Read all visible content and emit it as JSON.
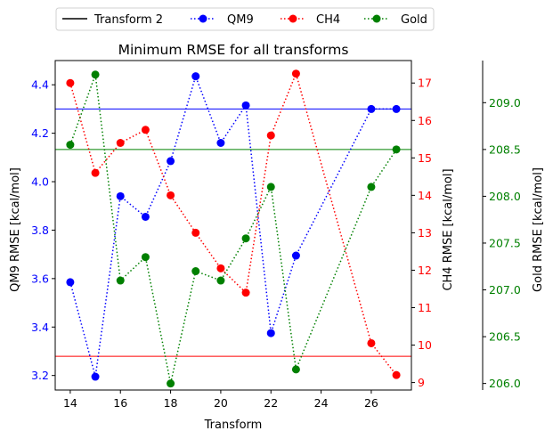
{
  "chart_data": {
    "type": "line",
    "title": "Minimum RMSE for all transforms",
    "xlabel": "Transform",
    "xlim": [
      13.4,
      27.6
    ],
    "xticks": [
      14,
      16,
      18,
      20,
      22,
      24,
      26
    ],
    "x": [
      14,
      15,
      16,
      17,
      18,
      19,
      20,
      21,
      22,
      23,
      26,
      27
    ],
    "legend": {
      "placement": "top, outside, 4 columns",
      "entries": [
        "Transform 2",
        "QM9",
        "CH4",
        "Gold"
      ]
    },
    "axes": {
      "qm9": {
        "label": "QM9 RMSE [kcal/mol]",
        "color": "#0000ff",
        "side": "left",
        "ylim": [
          3.14,
          4.5
        ],
        "ticks": [
          "3.2",
          "3.4",
          "3.6",
          "3.8",
          "4.0",
          "4.2",
          "4.4"
        ]
      },
      "ch4": {
        "label": "CH4 RMSE [kcal/mol]",
        "color": "#ff0000",
        "side": "right",
        "ylim": [
          8.8,
          17.6
        ],
        "ticks": [
          "9",
          "10",
          "11",
          "12",
          "13",
          "14",
          "15",
          "16",
          "17"
        ]
      },
      "gold": {
        "label": "Gold RMSE [kcal/mol]",
        "color": "#008000",
        "side": "right-offset",
        "ylim": [
          205.93,
          209.45
        ],
        "ticks": [
          "206.0",
          "206.5",
          "207.0",
          "207.5",
          "208.0",
          "208.5",
          "209.0"
        ]
      }
    },
    "series": [
      {
        "name": "QM9",
        "axis": "qm9",
        "color": "#0000ff",
        "style": "dotted",
        "marker": "circle",
        "values": [
          3.585,
          3.195,
          3.94,
          3.855,
          4.085,
          4.435,
          4.16,
          4.315,
          3.375,
          3.695,
          4.3,
          4.3
        ]
      },
      {
        "name": "CH4",
        "axis": "ch4",
        "color": "#ff0000",
        "style": "dotted",
        "marker": "circle",
        "values": [
          17.0,
          14.6,
          15.4,
          15.75,
          14.0,
          13.0,
          12.05,
          11.4,
          15.6,
          17.25,
          10.05,
          9.2
        ]
      },
      {
        "name": "Gold",
        "axis": "gold",
        "color": "#008000",
        "style": "dotted",
        "marker": "circle",
        "values": [
          208.55,
          209.3,
          207.1,
          207.35,
          206.0,
          207.2,
          207.1,
          207.55,
          208.1,
          206.15,
          208.1,
          208.5
        ]
      }
    ],
    "reference_lines": [
      {
        "name": "Transform 2",
        "legend_color": "#000000",
        "lines": [
          {
            "axis": "qm9",
            "value": 4.3,
            "color": "#0000ff"
          },
          {
            "axis": "ch4",
            "value": 9.7,
            "color": "#ff0000"
          },
          {
            "axis": "gold",
            "value": 208.5,
            "color": "#008000"
          }
        ]
      }
    ],
    "grid": false
  }
}
